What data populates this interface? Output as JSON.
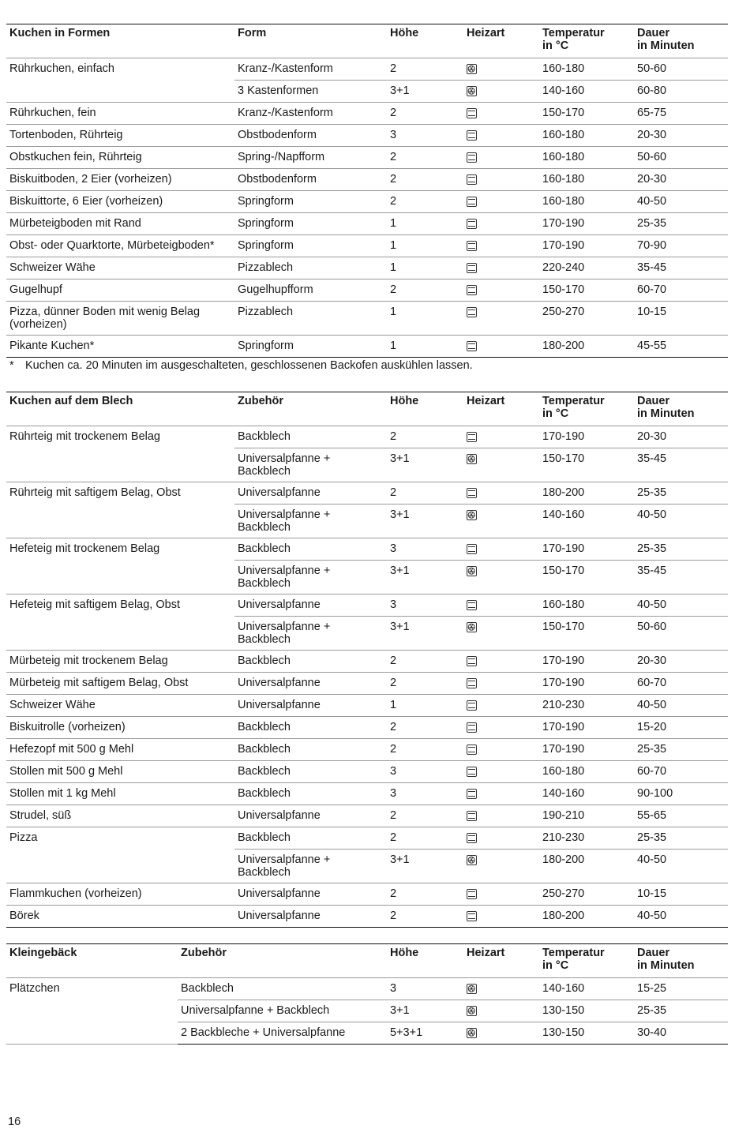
{
  "icons": {
    "ob": "top-bottom-heat-icon",
    "fan": "hot-air-fan-icon"
  },
  "tables": [
    {
      "id": "t1",
      "cols": [
        289,
        193,
        97,
        96,
        120,
        119
      ],
      "headers": [
        "Kuchen in Formen",
        "Form",
        "Höhe",
        "Heizart",
        "Temperatur\nin °C",
        "Dauer\nin Minuten"
      ],
      "groups": [
        {
          "name": "Rührkuchen, einfach",
          "rows": [
            [
              "Kranz-/Kastenform",
              "2",
              "fan",
              "160-180",
              "50-60"
            ],
            [
              "3 Kastenformen",
              "3+1",
              "fan",
              "140-160",
              "60-80"
            ]
          ]
        },
        {
          "name": "Rührkuchen, fein",
          "rows": [
            [
              "Kranz-/Kastenform",
              "2",
              "ob",
              "150-170",
              "65-75"
            ]
          ]
        },
        {
          "name": "Tortenboden, Rührteig",
          "rows": [
            [
              "Obstbodenform",
              "3",
              "ob",
              "160-180",
              "20-30"
            ]
          ]
        },
        {
          "name": "Obstkuchen fein, Rührteig",
          "rows": [
            [
              "Spring-/Napfform",
              "2",
              "ob",
              "160-180",
              "50-60"
            ]
          ]
        },
        {
          "name": "Biskuitboden, 2 Eier (vorheizen)",
          "rows": [
            [
              "Obstbodenform",
              "2",
              "ob",
              "160-180",
              "20-30"
            ]
          ]
        },
        {
          "name": "Biskuittorte, 6 Eier (vorheizen)",
          "rows": [
            [
              "Springform",
              "2",
              "ob",
              "160-180",
              "40-50"
            ]
          ]
        },
        {
          "name": "Mürbeteigboden mit Rand",
          "rows": [
            [
              "Springform",
              "1",
              "ob",
              "170-190",
              "25-35"
            ]
          ]
        },
        {
          "name": "Obst- oder Quarktorte, Mürbeteigboden*",
          "rows": [
            [
              "Springform",
              "1",
              "ob",
              "170-190",
              "70-90"
            ]
          ]
        },
        {
          "name": "Schweizer Wähe",
          "rows": [
            [
              "Pizzablech",
              "1",
              "ob",
              "220-240",
              "35-45"
            ]
          ]
        },
        {
          "name": "Gugelhupf",
          "rows": [
            [
              "Gugelhupfform",
              "2",
              "ob",
              "150-170",
              "60-70"
            ]
          ]
        },
        {
          "name": "Pizza, dünner Boden mit wenig Belag (vorheizen)",
          "rows": [
            [
              "Pizzablech",
              "1",
              "ob",
              "250-270",
              "10-15"
            ]
          ]
        },
        {
          "name": "Pikante Kuchen*",
          "rows": [
            [
              "Springform",
              "1",
              "ob",
              "180-200",
              "45-55"
            ]
          ]
        }
      ]
    },
    {
      "id": "t2",
      "cols": [
        289,
        193,
        97,
        96,
        120,
        119
      ],
      "headers": [
        "Kuchen auf dem Blech",
        "Zubehör",
        "Höhe",
        "Heizart",
        "Temperatur\nin °C",
        "Dauer\nin Minuten"
      ],
      "groups": [
        {
          "name": "Rührteig mit trockenem Belag",
          "rows": [
            [
              "Backblech",
              "2",
              "ob",
              "170-190",
              "20-30"
            ],
            [
              "Universalpfanne + Backblech",
              "3+1",
              "fan",
              "150-170",
              "35-45"
            ]
          ]
        },
        {
          "name": "Rührteig mit saftigem Belag, Obst",
          "rows": [
            [
              "Universalpfanne",
              "2",
              "ob",
              "180-200",
              "25-35"
            ],
            [
              "Universalpfanne + Backblech",
              "3+1",
              "fan",
              "140-160",
              "40-50"
            ]
          ]
        },
        {
          "name": "Hefeteig mit trockenem Belag",
          "rows": [
            [
              "Backblech",
              "3",
              "ob",
              "170-190",
              "25-35"
            ],
            [
              "Universalpfanne + Backblech",
              "3+1",
              "fan",
              "150-170",
              "35-45"
            ]
          ]
        },
        {
          "name": "Hefeteig mit saftigem Belag, Obst",
          "rows": [
            [
              "Universalpfanne",
              "3",
              "ob",
              "160-180",
              "40-50"
            ],
            [
              "Universalpfanne + Backblech",
              "3+1",
              "fan",
              "150-170",
              "50-60"
            ]
          ]
        },
        {
          "name": "Mürbeteig mit trockenem Belag",
          "rows": [
            [
              "Backblech",
              "2",
              "ob",
              "170-190",
              "20-30"
            ]
          ]
        },
        {
          "name": "Mürbeteig mit saftigem Belag, Obst",
          "rows": [
            [
              "Universalpfanne",
              "2",
              "ob",
              "170-190",
              "60-70"
            ]
          ]
        },
        {
          "name": "Schweizer Wähe",
          "rows": [
            [
              "Universalpfanne",
              "1",
              "ob",
              "210-230",
              "40-50"
            ]
          ]
        },
        {
          "name": "Biskuitrolle (vorheizen)",
          "rows": [
            [
              "Backblech",
              "2",
              "ob",
              "170-190",
              "15-20"
            ]
          ]
        },
        {
          "name": "Hefezopf mit 500 g Mehl",
          "rows": [
            [
              "Backblech",
              "2",
              "ob",
              "170-190",
              "25-35"
            ]
          ]
        },
        {
          "name": "Stollen mit 500 g Mehl",
          "rows": [
            [
              "Backblech",
              "3",
              "ob",
              "160-180",
              "60-70"
            ]
          ]
        },
        {
          "name": "Stollen mit 1 kg Mehl",
          "rows": [
            [
              "Backblech",
              "3",
              "ob",
              "140-160",
              "90-100"
            ]
          ]
        },
        {
          "name": "Strudel, süß",
          "rows": [
            [
              "Universalpfanne",
              "2",
              "ob",
              "190-210",
              "55-65"
            ]
          ]
        },
        {
          "name": "Pizza",
          "rows": [
            [
              "Backblech",
              "2",
              "ob",
              "210-230",
              "25-35"
            ],
            [
              "Universalpfanne + Backblech",
              "3+1",
              "fan",
              "180-200",
              "40-50"
            ]
          ]
        },
        {
          "name": "Flammkuchen (vorheizen)",
          "rows": [
            [
              "Universalpfanne",
              "2",
              "ob",
              "250-270",
              "10-15"
            ]
          ]
        },
        {
          "name": "Börek",
          "rows": [
            [
              "Universalpfanne",
              "2",
              "ob",
              "180-200",
              "40-50"
            ]
          ]
        }
      ]
    },
    {
      "id": "t3",
      "cols": [
        217,
        265,
        97,
        96,
        120,
        119
      ],
      "headers": [
        "Kleingebäck",
        "Zubehör",
        "Höhe",
        "Heizart",
        "Temperatur\nin °C",
        "Dauer\nin Minuten"
      ],
      "groups": [
        {
          "name": "Plätzchen",
          "rows": [
            [
              "Backblech",
              "3",
              "fan",
              "140-160",
              "15-25"
            ],
            [
              "Universalpfanne + Backblech",
              "3+1",
              "fan",
              "130-150",
              "25-35"
            ],
            [
              "2 Backbleche + Universalpfanne",
              "5+3+1",
              "fan",
              "130-150",
              "30-40"
            ]
          ]
        }
      ]
    }
  ],
  "footnote": {
    "marker": "*",
    "text": "Kuchen ca. 20 Minuten im ausgeschalteten, geschlossenen Backofen auskühlen lassen."
  },
  "page_number": "16"
}
